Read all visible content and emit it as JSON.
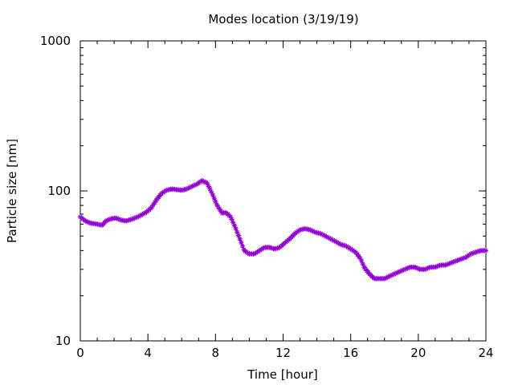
{
  "chart_data": {
    "type": "line",
    "title": "Modes location (3/19/19)",
    "xlabel": "Time [hour]",
    "ylabel": "Particle size [nm]",
    "xlim": [
      0,
      24
    ],
    "ylim": [
      10,
      1000
    ],
    "yscale": "log",
    "xticks": [
      0,
      4,
      8,
      12,
      16,
      20,
      24
    ],
    "yticks": [
      10,
      100,
      1000
    ],
    "grid": false,
    "series": [
      {
        "color": "#9400d3",
        "marker": "star",
        "x": [
          0,
          0.3,
          0.6,
          1,
          1.3,
          1.5,
          1.8,
          2.1,
          2.4,
          2.7,
          3.1,
          3.5,
          3.9,
          4.2,
          4.5,
          4.8,
          5.1,
          5.4,
          5.7,
          6.0,
          6.3,
          6.6,
          6.9,
          7.2,
          7.5,
          7.8,
          8.1,
          8.4,
          8.6,
          8.9,
          9.2,
          9.5,
          9.7,
          10.0,
          10.3,
          10.6,
          10.9,
          11.2,
          11.5,
          11.8,
          12.1,
          12.4,
          12.7,
          13.0,
          13.3,
          13.6,
          13.9,
          14.2,
          14.5,
          14.8,
          15.1,
          15.4,
          15.7,
          16.0,
          16.3,
          16.6,
          16.8,
          17.1,
          17.4,
          17.7,
          18.0,
          18.3,
          18.6,
          18.9,
          19.2,
          19.5,
          19.8,
          20.1,
          20.4,
          20.7,
          21.0,
          21.3,
          21.6,
          21.9,
          22.2,
          22.5,
          22.8,
          23.1,
          23.4,
          23.7,
          24
        ],
        "y": [
          67,
          63,
          61,
          60,
          59,
          63,
          65,
          66,
          64,
          63,
          65,
          68,
          72,
          77,
          87,
          96,
          101,
          103,
          102,
          101,
          103,
          107,
          111,
          117,
          113,
          96,
          80,
          71,
          72,
          67,
          56,
          46,
          40,
          38,
          38,
          40,
          42,
          42,
          41,
          42,
          45,
          48,
          52,
          55,
          56,
          55,
          53,
          52,
          50,
          48,
          46,
          44,
          43,
          41,
          39,
          35,
          31,
          28,
          26,
          26,
          26,
          27,
          28,
          29,
          30,
          31,
          31,
          30,
          30,
          31,
          31,
          32,
          32,
          33,
          34,
          35,
          36,
          38,
          39,
          40,
          40
        ]
      }
    ]
  }
}
